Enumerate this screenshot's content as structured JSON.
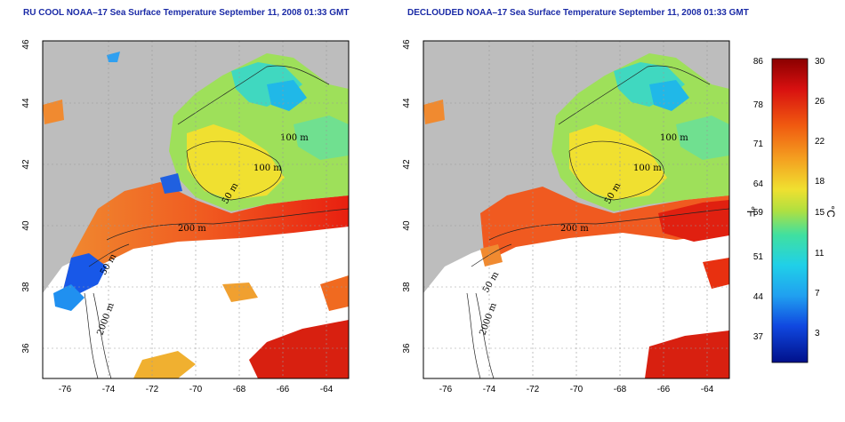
{
  "panels": [
    {
      "title": "RU COOL NOAA–17 Sea Surface Temperature September 11, 2008 01:33 GMT",
      "contours": [
        "100 m",
        "100 m",
        "50 m",
        "200 m",
        "50 m",
        "2000 m"
      ]
    },
    {
      "title": "DECLOUDED NOAA–17 Sea Surface Temperature September 11, 2008 01:33 GMT",
      "contours": [
        "100 m",
        "100 m",
        "50 m",
        "200 m",
        "50 m",
        "2000 m"
      ]
    }
  ],
  "axes": {
    "x_ticks": [
      "-76",
      "-74",
      "-72",
      "-70",
      "-68",
      "-66",
      "-64"
    ],
    "y_ticks": [
      "46",
      "44",
      "42",
      "40",
      "38",
      "36"
    ]
  },
  "colorbar": {
    "fahrenheit_ticks": [
      "86",
      "78",
      "71",
      "64",
      "59",
      "51",
      "44",
      "37"
    ],
    "celsius_ticks": [
      "30",
      "26",
      "22",
      "18",
      "15",
      "11",
      "7",
      "3"
    ],
    "f_unit": "°F",
    "c_unit": "°C"
  },
  "colors": {
    "land": "#bdbdbd",
    "ocean_gap": "#ffffff",
    "title": "#1a2aa6",
    "warm": "#e83010",
    "hot": "#c21010",
    "mid": "#f0b020",
    "cool": "#2fd8c8",
    "cold": "#1050e0"
  }
}
